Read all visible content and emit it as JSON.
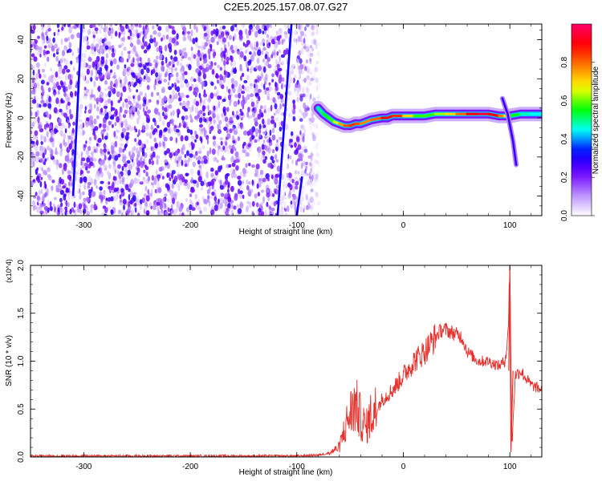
{
  "title": "C2E5.2025.157.08.07.G27",
  "chart_data": [
    {
      "type": "heatmap",
      "xlabel": "Height of straight line (km)",
      "ylabel": "Frequency (Hz)",
      "xlim": [
        -350,
        130
      ],
      "ylim": [
        -50,
        48
      ],
      "xticks": [
        -300,
        -200,
        -100,
        0,
        100
      ],
      "yticks": [
        -40,
        -20,
        0,
        20,
        40
      ],
      "colorbar": {
        "label": "Normalized spectral amplitude",
        "range": [
          0.0,
          1.0
        ],
        "ticks": [
          0.0,
          0.2,
          0.4,
          0.6,
          0.8
        ],
        "colors": [
          "#ffffff",
          "#b88cff",
          "#6e00ff",
          "#0000ff",
          "#00ffff",
          "#00ff00",
          "#ffff00",
          "#ff8000",
          "#ff0000",
          "#ff0066"
        ]
      },
      "noise_region_x": [
        -350,
        -78
      ],
      "streaks": [
        {
          "x": [
            -310,
            -302
          ],
          "y": [
            -40,
            48
          ]
        },
        {
          "x": [
            -118,
            -105
          ],
          "y": [
            -50,
            48
          ]
        },
        {
          "x": [
            -100,
            -95
          ],
          "y": [
            -50,
            -30
          ]
        }
      ],
      "ridge": {
        "x": [
          -80,
          -75,
          -70,
          -65,
          -60,
          -55,
          -50,
          -45,
          -40,
          -30,
          -20,
          -15,
          -10,
          0,
          10,
          20,
          30,
          40,
          50,
          60,
          70,
          80,
          90,
          95,
          100,
          110,
          120,
          130
        ],
        "y": [
          5,
          2,
          0,
          -2,
          -3,
          -4,
          -4,
          -3,
          -3,
          -1,
          0,
          0,
          1,
          1,
          1,
          1,
          2,
          2,
          2,
          2,
          2,
          2,
          1,
          1,
          1,
          2,
          2,
          2
        ],
        "amplitude": [
          0.45,
          0.55,
          0.55,
          0.6,
          0.7,
          0.8,
          0.85,
          0.85,
          0.8,
          0.75,
          0.85,
          0.95,
          0.9,
          0.8,
          0.6,
          0.55,
          0.6,
          0.65,
          0.75,
          0.85,
          0.95,
          0.95,
          0.85,
          0.7,
          0.6,
          0.5,
          0.45,
          0.45
        ]
      },
      "hook": {
        "x": [
          93,
          98,
          103,
          106
        ],
        "y": [
          10,
          2,
          -12,
          -24
        ]
      }
    },
    {
      "type": "line",
      "xlabel": "Height of straight line (km)",
      "ylabel": "SNR (10 * v/v)",
      "y_multiplier": "(x10^4)",
      "xlim": [
        -350,
        130
      ],
      "ylim": [
        0,
        2.0
      ],
      "xticks": [
        -300,
        -200,
        -100,
        0,
        100
      ],
      "yticks": [
        0.0,
        0.5,
        1.0,
        1.5,
        2.0
      ],
      "color": "#e8302c",
      "series": [
        {
          "x": [
            -350,
            -300,
            -250,
            -200,
            -150,
            -100,
            -80,
            -70,
            -60,
            -55,
            -50,
            -45,
            -40,
            -35,
            -30,
            -25,
            -20,
            -10,
            0,
            10,
            20,
            30,
            35,
            40,
            45,
            50,
            55,
            60,
            70,
            80,
            90,
            95,
            98,
            100,
            102,
            105,
            110,
            120,
            130
          ],
          "y": [
            0.01,
            0.01,
            0.01,
            0.01,
            0.01,
            0.01,
            0.02,
            0.04,
            0.1,
            0.3,
            0.45,
            0.55,
            0.4,
            0.3,
            0.45,
            0.5,
            0.6,
            0.7,
            0.85,
            1.0,
            1.1,
            1.25,
            1.32,
            1.33,
            1.3,
            1.28,
            1.25,
            1.1,
            1.0,
            1.0,
            0.95,
            1.0,
            1.2,
            2.0,
            0.1,
            0.85,
            0.9,
            0.75,
            0.7
          ]
        }
      ]
    }
  ]
}
